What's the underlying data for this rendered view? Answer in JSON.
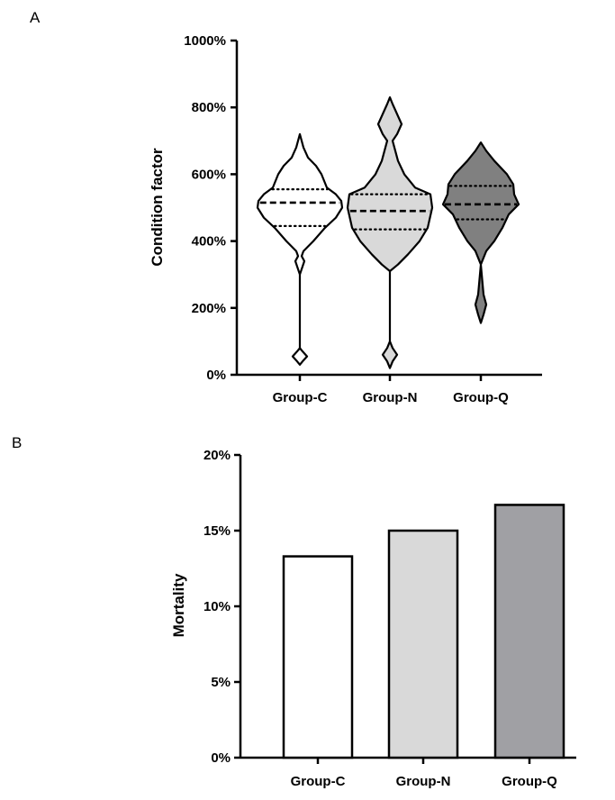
{
  "chart_data": [
    {
      "panel": "A",
      "type": "violin",
      "ylabel": "Condition factor",
      "ylim": [
        0,
        1000
      ],
      "yticks": [
        "0%",
        "200%",
        "400%",
        "600%",
        "800%",
        "1000%"
      ],
      "categories": [
        "Group-C",
        "Group-N",
        "Group-Q"
      ],
      "colors": [
        "#ffffff",
        "#d9d9d9",
        "#808080"
      ],
      "series": [
        {
          "quartiles": [
            445,
            515,
            555
          ],
          "profile": [
            [
              30,
              0
            ],
            [
              40,
              3
            ],
            [
              55,
              8
            ],
            [
              70,
              3
            ],
            [
              80,
              0
            ],
            [
              300,
              0
            ],
            [
              340,
              5
            ],
            [
              355,
              2
            ],
            [
              370,
              4
            ],
            [
              400,
              15
            ],
            [
              440,
              28
            ],
            [
              470,
              40
            ],
            [
              500,
              47
            ],
            [
              520,
              46
            ],
            [
              540,
              40
            ],
            [
              560,
              30
            ],
            [
              600,
              24
            ],
            [
              625,
              18
            ],
            [
              650,
              9
            ],
            [
              680,
              4
            ],
            [
              720,
              0
            ]
          ]
        },
        {
          "quartiles": [
            435,
            490,
            540
          ],
          "profile": [
            [
              20,
              0
            ],
            [
              40,
              3
            ],
            [
              60,
              8
            ],
            [
              80,
              3
            ],
            [
              100,
              0
            ],
            [
              310,
              0
            ],
            [
              330,
              9
            ],
            [
              360,
              20
            ],
            [
              400,
              33
            ],
            [
              440,
              42
            ],
            [
              500,
              47
            ],
            [
              540,
              45
            ],
            [
              560,
              28
            ],
            [
              600,
              16
            ],
            [
              640,
              9
            ],
            [
              680,
              5
            ],
            [
              700,
              3
            ],
            [
              720,
              8
            ],
            [
              750,
              13
            ],
            [
              780,
              8
            ],
            [
              810,
              3
            ],
            [
              830,
              0
            ]
          ]
        },
        {
          "quartiles": [
            465,
            510,
            565
          ],
          "profile": [
            [
              155,
              0
            ],
            [
              180,
              3
            ],
            [
              210,
              6
            ],
            [
              240,
              3
            ],
            [
              330,
              0
            ],
            [
              370,
              6
            ],
            [
              400,
              15
            ],
            [
              440,
              24
            ],
            [
              480,
              31
            ],
            [
              510,
              42
            ],
            [
              540,
              37
            ],
            [
              570,
              36
            ],
            [
              600,
              29
            ],
            [
              640,
              15
            ],
            [
              670,
              6
            ],
            [
              695,
              0
            ]
          ]
        }
      ]
    },
    {
      "panel": "B",
      "type": "bar",
      "ylabel": "Mortality",
      "ylim": [
        0,
        20
      ],
      "yticks": [
        "0%",
        "5%",
        "10%",
        "15%",
        "20%"
      ],
      "categories": [
        "Group-C",
        "Group-N",
        "Group-Q"
      ],
      "values": [
        13.3,
        15.0,
        16.7
      ],
      "colors": [
        "#ffffff",
        "#d9d9d9",
        "#a0a0a4"
      ]
    }
  ]
}
